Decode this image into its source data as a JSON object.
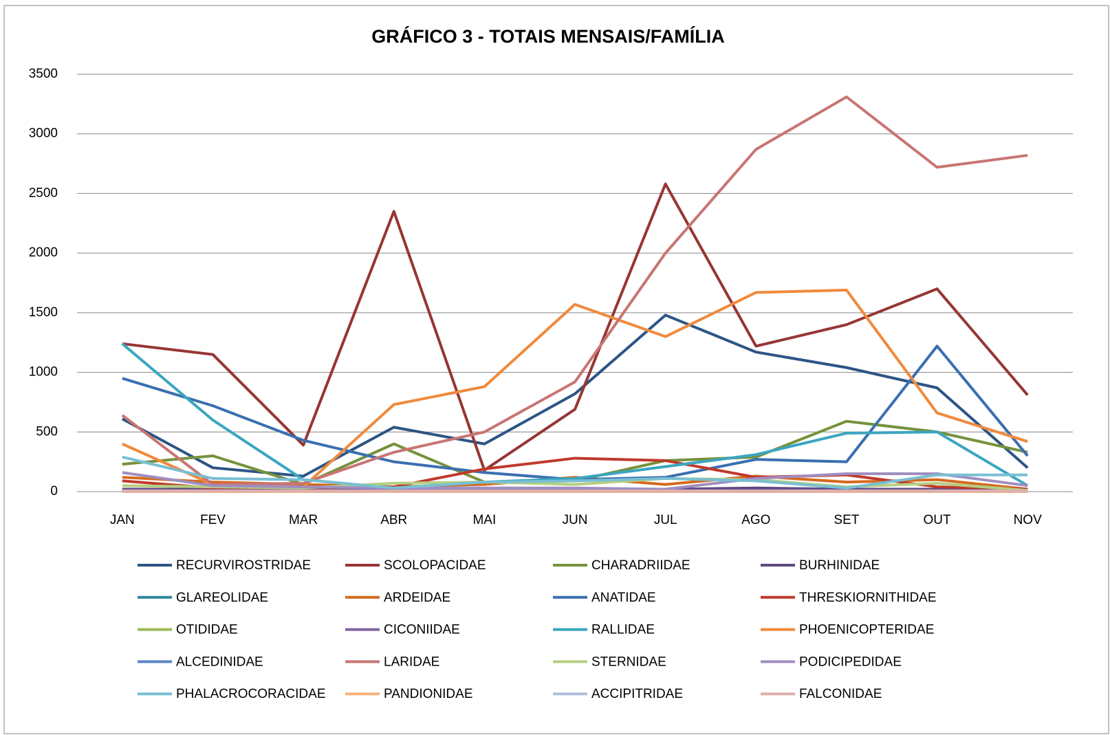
{
  "chart_data": {
    "type": "line",
    "title": "GRÁFICO 3 - TOTAIS MENSAIS/FAMÍLIA",
    "categories": [
      "JAN",
      "FEV",
      "MAR",
      "ABR",
      "MAI",
      "JUN",
      "JUL",
      "AGO",
      "SET",
      "OUT",
      "NOV"
    ],
    "ylim": [
      0,
      3500
    ],
    "yticks": [
      0,
      500,
      1000,
      1500,
      2000,
      2500,
      3000,
      3500
    ],
    "grid": true,
    "series": [
      {
        "name": "RECURVIROSTRIDAE",
        "color": "#2c5585",
        "values": [
          610,
          200,
          130,
          540,
          400,
          820,
          1480,
          1170,
          1040,
          870,
          200
        ]
      },
      {
        "name": "SCOLOPACIDAE",
        "color": "#963634",
        "values": [
          1240,
          1150,
          390,
          2350,
          180,
          690,
          2580,
          1220,
          1400,
          1700,
          810
        ]
      },
      {
        "name": "CHARADRIIDAE",
        "color": "#76923c",
        "values": [
          230,
          300,
          60,
          400,
          80,
          90,
          260,
          290,
          590,
          500,
          330
        ]
      },
      {
        "name": "BURHINIDAE",
        "color": "#5f497a",
        "values": [
          20,
          20,
          20,
          20,
          20,
          20,
          20,
          30,
          20,
          20,
          20
        ]
      },
      {
        "name": "GLAREOLIDAE",
        "color": "#31859c",
        "values": [
          5,
          5,
          5,
          5,
          5,
          5,
          5,
          5,
          5,
          5,
          5
        ]
      },
      {
        "name": "ARDEIDAE",
        "color": "#d46a1e",
        "values": [
          120,
          80,
          60,
          40,
          60,
          120,
          60,
          130,
          80,
          100,
          20
        ]
      },
      {
        "name": "ANATIDAE",
        "color": "#3a6fb0",
        "values": [
          950,
          720,
          430,
          250,
          160,
          100,
          120,
          270,
          250,
          1220,
          300
        ]
      },
      {
        "name": "THRESKIORNITHIDAE",
        "color": "#c0392b",
        "values": [
          90,
          30,
          30,
          40,
          190,
          280,
          260,
          120,
          140,
          40,
          20
        ]
      },
      {
        "name": "OTIDIDAE",
        "color": "#9bbb59",
        "values": [
          5,
          5,
          5,
          5,
          5,
          5,
          5,
          5,
          5,
          5,
          5
        ]
      },
      {
        "name": "CICONIIDAE",
        "color": "#8064a2",
        "values": [
          10,
          10,
          10,
          10,
          10,
          10,
          10,
          10,
          10,
          10,
          10
        ]
      },
      {
        "name": "RALLIDAE",
        "color": "#3ba6c0",
        "values": [
          1240,
          600,
          100,
          30,
          80,
          110,
          210,
          310,
          490,
          500,
          50
        ]
      },
      {
        "name": "PHOENICOPTERIDAE",
        "color": "#f08a3c",
        "values": [
          400,
          60,
          40,
          730,
          880,
          1570,
          1300,
          1670,
          1690,
          660,
          420
        ]
      },
      {
        "name": "ALCEDINIDAE",
        "color": "#5b86c4",
        "values": [
          5,
          5,
          5,
          5,
          5,
          5,
          5,
          5,
          5,
          5,
          5
        ]
      },
      {
        "name": "LARIDAE",
        "color": "#c87573",
        "values": [
          640,
          60,
          70,
          330,
          500,
          920,
          2000,
          2870,
          3310,
          2720,
          2820
        ]
      },
      {
        "name": "STERNIDAE",
        "color": "#b5cf82",
        "values": [
          50,
          40,
          30,
          70,
          80,
          60,
          110,
          100,
          40,
          70,
          10
        ]
      },
      {
        "name": "PODICIPEDIDAE",
        "color": "#a08ec0",
        "values": [
          160,
          50,
          40,
          30,
          30,
          30,
          20,
          110,
          150,
          150,
          50
        ]
      },
      {
        "name": "PHALACROCORACIDAE",
        "color": "#79bfd3",
        "values": [
          290,
          110,
          100,
          30,
          80,
          90,
          110,
          90,
          30,
          140,
          140
        ]
      },
      {
        "name": "PANDIONIDAE",
        "color": "#f9b27a",
        "values": [
          0,
          0,
          0,
          0,
          0,
          0,
          0,
          0,
          0,
          0,
          0
        ]
      },
      {
        "name": "ACCIPITRIDAE",
        "color": "#b0bfdb",
        "values": [
          5,
          5,
          5,
          5,
          5,
          5,
          5,
          5,
          5,
          5,
          5
        ]
      },
      {
        "name": "FALCONIDAE",
        "color": "#dfb0ae",
        "values": [
          5,
          5,
          5,
          5,
          5,
          5,
          5,
          5,
          5,
          5,
          5
        ]
      }
    ]
  }
}
